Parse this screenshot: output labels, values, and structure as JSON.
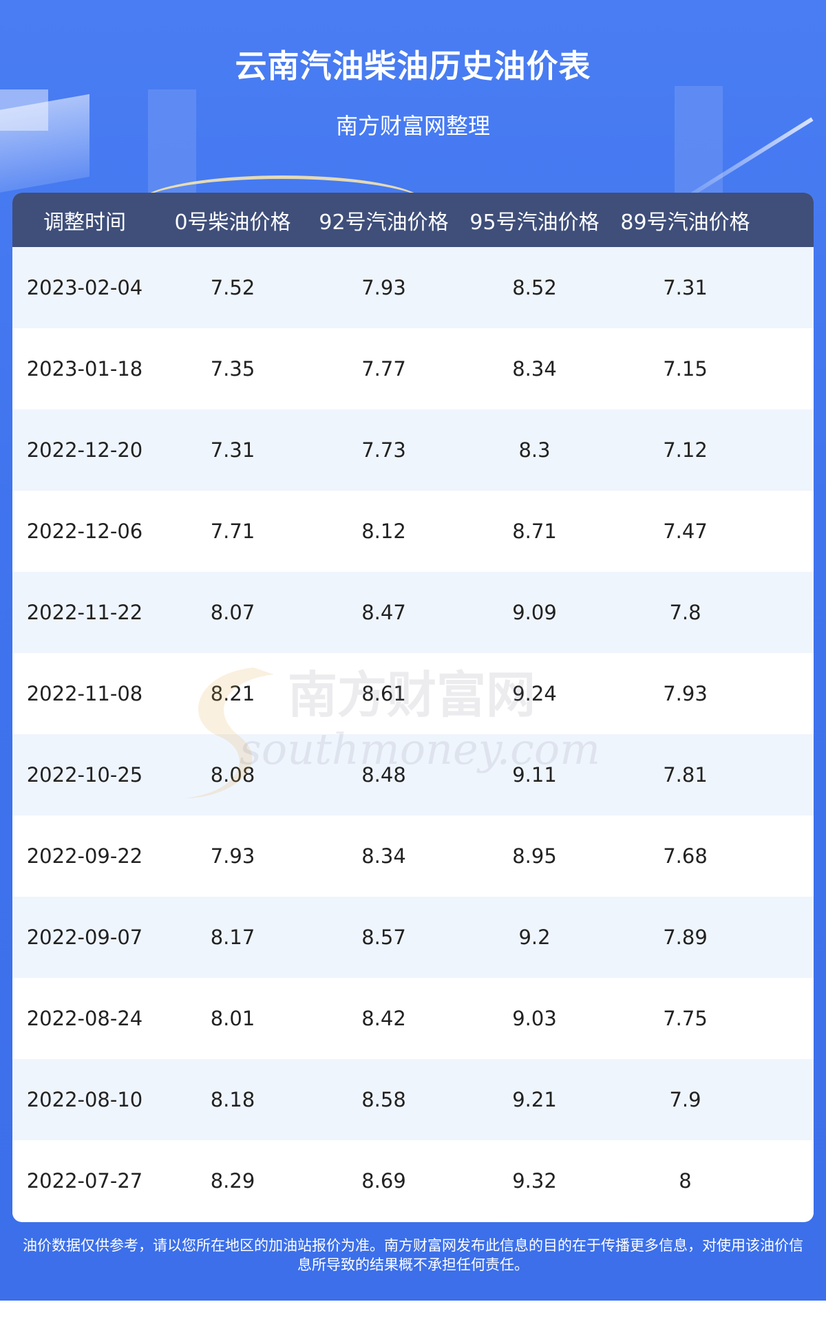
{
  "title": "云南汽油柴油历史油价表",
  "subtitle": "南方财富网整理",
  "table": {
    "headers": [
      "调整时间",
      "0号柴油价格",
      "92号汽油价格",
      "95号汽油价格",
      "89号汽油价格"
    ],
    "rows": [
      [
        "2023-02-04",
        "7.52",
        "7.93",
        "8.52",
        "7.31"
      ],
      [
        "2023-01-18",
        "7.35",
        "7.77",
        "8.34",
        "7.15"
      ],
      [
        "2022-12-20",
        "7.31",
        "7.73",
        "8.3",
        "7.12"
      ],
      [
        "2022-12-06",
        "7.71",
        "8.12",
        "8.71",
        "7.47"
      ],
      [
        "2022-11-22",
        "8.07",
        "8.47",
        "9.09",
        "7.8"
      ],
      [
        "2022-11-08",
        "8.21",
        "8.61",
        "9.24",
        "7.93"
      ],
      [
        "2022-10-25",
        "8.08",
        "8.48",
        "9.11",
        "7.81"
      ],
      [
        "2022-09-22",
        "7.93",
        "8.34",
        "8.95",
        "7.68"
      ],
      [
        "2022-09-07",
        "8.17",
        "8.57",
        "9.2",
        "7.89"
      ],
      [
        "2022-08-24",
        "8.01",
        "8.42",
        "9.03",
        "7.75"
      ],
      [
        "2022-08-10",
        "8.18",
        "8.58",
        "9.21",
        "7.9"
      ],
      [
        "2022-07-27",
        "8.29",
        "8.69",
        "9.32",
        "8"
      ]
    ]
  },
  "watermark": {
    "cn": "南方财富网",
    "en": "southmoney.com"
  },
  "footer": {
    "line1": "油价数据仅供参考，请以您所在地区的加油站报价为准。南方财富网发布此信息的目的在于传播更多信息，对使用该油价信",
    "line2": "息所导致的结果概不承担任何责任。"
  },
  "colors": {
    "background_blue": "#4a7df3",
    "header_row": "#3f4f7a",
    "stripe": "#eff5fd"
  }
}
